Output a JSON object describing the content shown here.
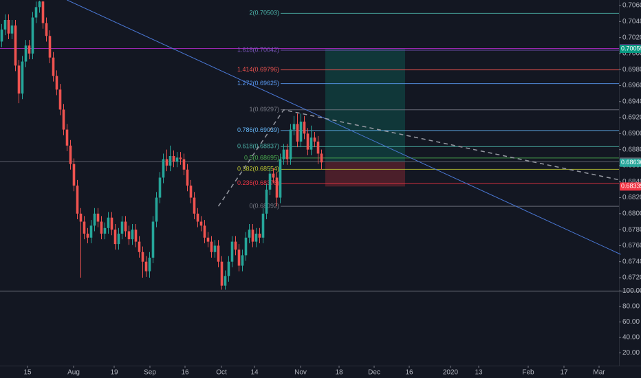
{
  "chart_data": [
    {
      "type": "candlestick",
      "up_color": "#26a69a",
      "down_color": "#ef5350",
      "xlim": [
        -0.5,
        179.5
      ],
      "ylim": [
        0.67037,
        0.70669
      ],
      "grid": false,
      "xticks": [
        {
          "value": 7.5,
          "label": "15"
        },
        {
          "value": 20.9,
          "label": "Aug"
        },
        {
          "value": 32.7,
          "label": "19"
        },
        {
          "value": 43.1,
          "label": "Sep"
        },
        {
          "value": 53.3,
          "label": "16"
        },
        {
          "value": 63.9,
          "label": "Oct"
        },
        {
          "value": 73.5,
          "label": "14"
        },
        {
          "value": 86.9,
          "label": "Nov"
        },
        {
          "value": 98.1,
          "label": "18"
        },
        {
          "value": 108.3,
          "label": "Dec"
        },
        {
          "value": 118.5,
          "label": "16"
        },
        {
          "value": 130.5,
          "label": "2020"
        },
        {
          "value": 138.7,
          "label": "13"
        },
        {
          "value": 153.1,
          "label": "Feb"
        },
        {
          "value": 163.5,
          "label": "17"
        },
        {
          "value": 173.7,
          "label": "Mar"
        }
      ],
      "yticks": [
        {
          "value": 0.706,
          "label": "0.70600"
        },
        {
          "value": 0.704,
          "label": "0.70400"
        },
        {
          "value": 0.702,
          "label": "0.70200"
        },
        {
          "value": 0.7,
          "label": "0.70000"
        },
        {
          "value": 0.698,
          "label": "0.69800"
        },
        {
          "value": 0.696,
          "label": "0.69600"
        },
        {
          "value": 0.694,
          "label": "0.69400"
        },
        {
          "value": 0.692,
          "label": "0.69200"
        },
        {
          "value": 0.69,
          "label": "0.69000"
        },
        {
          "value": 0.688,
          "label": "0.68800"
        },
        {
          "value": 0.686,
          "label": "0.68600"
        },
        {
          "value": 0.684,
          "label": "0.68400"
        },
        {
          "value": 0.682,
          "label": "0.68200"
        },
        {
          "value": 0.68,
          "label": "0.68000"
        },
        {
          "value": 0.678,
          "label": "0.67800"
        },
        {
          "value": 0.676,
          "label": "0.67600"
        },
        {
          "value": 0.674,
          "label": "0.67400"
        },
        {
          "value": 0.672,
          "label": "0.67200"
        }
      ],
      "x": [
        0,
        1,
        2,
        3,
        4,
        5,
        6,
        7,
        8,
        9,
        10,
        11,
        12,
        13,
        14,
        15,
        16,
        17,
        18,
        19,
        20,
        21,
        22,
        23,
        24,
        25,
        26,
        27,
        28,
        29,
        30,
        31,
        32,
        33,
        34,
        35,
        36,
        37,
        38,
        39,
        40,
        41,
        42,
        43,
        44,
        45,
        46,
        47,
        48,
        49,
        50,
        51,
        52,
        53,
        54,
        55,
        56,
        57,
        58,
        59,
        60,
        61,
        62,
        63,
        64,
        65,
        66,
        67,
        68,
        69,
        70,
        71,
        72,
        73,
        74,
        75,
        76,
        77,
        78,
        79,
        80,
        81,
        82,
        83,
        84,
        85,
        86,
        87,
        88,
        89,
        90,
        91,
        92,
        93
      ],
      "open": [
        0.7015,
        0.703,
        0.7042,
        0.7025,
        0.7035,
        0.6985,
        0.695,
        0.699,
        0.701,
        0.7,
        0.7045,
        0.7058,
        0.7065,
        0.7038,
        0.7022,
        0.6995,
        0.6972,
        0.6955,
        0.693,
        0.6905,
        0.6885,
        0.6862,
        0.6835,
        0.68,
        0.679,
        0.6775,
        0.677,
        0.6785,
        0.68,
        0.679,
        0.6775,
        0.6782,
        0.6795,
        0.678,
        0.6762,
        0.6775,
        0.679,
        0.6778,
        0.6768,
        0.678,
        0.6765,
        0.6752,
        0.674,
        0.6728,
        0.6745,
        0.679,
        0.682,
        0.6845,
        0.6868,
        0.686,
        0.6872,
        0.6865,
        0.687,
        0.6868,
        0.6855,
        0.6835,
        0.682,
        0.68,
        0.679,
        0.6785,
        0.677,
        0.6765,
        0.6752,
        0.676,
        0.674,
        0.671,
        0.6722,
        0.674,
        0.6765,
        0.6755,
        0.6735,
        0.6748,
        0.677,
        0.678,
        0.6765,
        0.6775,
        0.677,
        0.68,
        0.683,
        0.685,
        0.6845,
        0.682,
        0.6868,
        0.688,
        0.6868,
        0.6905,
        0.6912,
        0.689,
        0.6915,
        0.69,
        0.688,
        0.6895,
        0.689,
        0.6875
      ],
      "high": [
        0.7037,
        0.7049,
        0.7049,
        0.7042,
        0.7042,
        0.6992,
        0.6997,
        0.7017,
        0.7017,
        0.7052,
        0.7065,
        0.7066,
        0.7066,
        0.7045,
        0.7029,
        0.7002,
        0.6979,
        0.6962,
        0.6937,
        0.6912,
        0.6892,
        0.6869,
        0.6842,
        0.6807,
        0.6797,
        0.6782,
        0.6792,
        0.6807,
        0.6807,
        0.6797,
        0.6789,
        0.6802,
        0.6802,
        0.6787,
        0.6782,
        0.6797,
        0.6797,
        0.6785,
        0.6787,
        0.6787,
        0.6772,
        0.6759,
        0.6747,
        0.6752,
        0.6797,
        0.6827,
        0.6852,
        0.6875,
        0.688,
        0.6885,
        0.6879,
        0.6877,
        0.6877,
        0.6875,
        0.6862,
        0.6842,
        0.6827,
        0.6807,
        0.6797,
        0.6792,
        0.6777,
        0.6772,
        0.6767,
        0.6767,
        0.6747,
        0.6729,
        0.6747,
        0.6772,
        0.6772,
        0.6762,
        0.6755,
        0.6777,
        0.6787,
        0.6787,
        0.6782,
        0.6782,
        0.6807,
        0.6837,
        0.6857,
        0.6857,
        0.6852,
        0.6875,
        0.6887,
        0.6887,
        0.6912,
        0.6922,
        0.6925,
        0.6925,
        0.6922,
        0.6907,
        0.691,
        0.6902,
        0.6897,
        0.688
      ],
      "low": [
        0.7008,
        0.7023,
        0.7018,
        0.7018,
        0.6978,
        0.6938,
        0.6943,
        0.6983,
        0.6993,
        0.6993,
        0.7038,
        0.7051,
        0.7031,
        0.7015,
        0.6988,
        0.6965,
        0.6948,
        0.6923,
        0.6898,
        0.6878,
        0.6855,
        0.6828,
        0.6793,
        0.672,
        0.6768,
        0.6763,
        0.6763,
        0.6778,
        0.6783,
        0.6768,
        0.6768,
        0.6775,
        0.6773,
        0.6755,
        0.6755,
        0.6768,
        0.6771,
        0.6761,
        0.6761,
        0.6758,
        0.6745,
        0.672,
        0.6721,
        0.672,
        0.6738,
        0.6783,
        0.6813,
        0.6838,
        0.6853,
        0.6853,
        0.6858,
        0.6858,
        0.6861,
        0.6848,
        0.6828,
        0.6813,
        0.6793,
        0.6783,
        0.6778,
        0.6763,
        0.6758,
        0.6745,
        0.6745,
        0.6733,
        0.6705,
        0.6705,
        0.6715,
        0.6733,
        0.6748,
        0.6728,
        0.6728,
        0.6741,
        0.6763,
        0.6758,
        0.6758,
        0.6763,
        0.6763,
        0.6793,
        0.6823,
        0.6838,
        0.6809,
        0.6813,
        0.6861,
        0.6861,
        0.6861,
        0.6898,
        0.6883,
        0.6883,
        0.6893,
        0.6873,
        0.6873,
        0.6883,
        0.6862,
        0.6855
      ],
      "close": [
        0.703,
        0.7042,
        0.7025,
        0.7035,
        0.6985,
        0.695,
        0.699,
        0.701,
        0.7,
        0.7045,
        0.7058,
        0.7065,
        0.7038,
        0.7022,
        0.6995,
        0.6972,
        0.6955,
        0.693,
        0.6905,
        0.6885,
        0.6862,
        0.6835,
        0.68,
        0.679,
        0.6775,
        0.677,
        0.6785,
        0.68,
        0.679,
        0.6775,
        0.6782,
        0.6795,
        0.678,
        0.6762,
        0.6775,
        0.679,
        0.6778,
        0.6768,
        0.678,
        0.6765,
        0.6752,
        0.674,
        0.6728,
        0.6745,
        0.679,
        0.682,
        0.6845,
        0.6868,
        0.686,
        0.6872,
        0.6865,
        0.687,
        0.6868,
        0.6855,
        0.6835,
        0.682,
        0.68,
        0.679,
        0.6785,
        0.677,
        0.6765,
        0.6752,
        0.676,
        0.674,
        0.671,
        0.6722,
        0.674,
        0.6765,
        0.6755,
        0.6735,
        0.6748,
        0.677,
        0.678,
        0.6765,
        0.6775,
        0.677,
        0.68,
        0.683,
        0.685,
        0.6845,
        0.682,
        0.6868,
        0.688,
        0.6868,
        0.6905,
        0.6912,
        0.689,
        0.6915,
        0.69,
        0.688,
        0.6895,
        0.689,
        0.6875,
        0.6864
      ],
      "fib_levels": [
        {
          "label": "2(0.70503)",
          "price": 0.70503,
          "color": "#4db6ac"
        },
        {
          "label": "1.618(0.70042)",
          "price": 0.70042,
          "color": "#7e57c2"
        },
        {
          "label": "1.414(0.69796)",
          "price": 0.69796,
          "color": "#ef5350"
        },
        {
          "label": "1.272(0.69625)",
          "price": 0.69625,
          "color": "#5b9cf6"
        },
        {
          "label": "1(0.69297)",
          "price": 0.69297,
          "color": "#787b86"
        },
        {
          "label": "0.786(0.69039)",
          "price": 0.69039,
          "color": "#64b5f6"
        },
        {
          "label": "0.618(0.68837)",
          "price": 0.68837,
          "color": "#4db6ac"
        },
        {
          "label": "0.5(0.68695)",
          "price": 0.68695,
          "color": "#4caf50"
        },
        {
          "label": "0.382(0.68554)",
          "price": 0.68554,
          "color": "#c0ca33"
        },
        {
          "label": "0.236(0.68378)",
          "price": 0.68378,
          "color": "#f23645"
        },
        {
          "label": "0(0.68092)",
          "price": 0.68092,
          "color": "#787b86"
        }
      ],
      "horizontal_lines": [
        {
          "price": 0.70064,
          "color": "#9c27b0"
        },
        {
          "price": 0.6865,
          "color": "#5d606b"
        }
      ],
      "price_badges": [
        {
          "value": 0.70064,
          "label": "0.70064",
          "color": "#9c27b0"
        },
        {
          "value": 0.70059,
          "label": "0.70059",
          "color": "#089981"
        },
        {
          "value": 0.6865,
          "label": "0.68650",
          "color": "#5d606b"
        },
        {
          "value": 0.68636,
          "label": "0.68636",
          "color": "#26a69a"
        },
        {
          "value": 0.68339,
          "label": "0.68339",
          "color": "#f23645"
        }
      ],
      "trendline": {
        "x": [
          19,
          180
        ],
        "y": [
          0.70669,
          0.67491
        ],
        "color": "#4a78d6"
      },
      "dashed_path": {
        "x": [
          63,
          82,
          180
        ],
        "y": [
          0.68092,
          0.69297,
          0.68418
        ],
        "color": "#9598a1"
      },
      "position": {
        "x": [
          94.1,
          117.3
        ],
        "entry": 0.6865,
        "target": 0.70059,
        "stop": 0.68339
      }
    },
    {
      "type": "indicator-pane",
      "ylim": [
        3.6,
        100.27
      ],
      "yticks": [
        {
          "value": 100,
          "label": "100.00"
        },
        {
          "value": 80,
          "label": "80.00"
        },
        {
          "value": 60,
          "label": "60.00"
        },
        {
          "value": 40,
          "label": "40.00"
        },
        {
          "value": 20,
          "label": "20.00"
        }
      ]
    }
  ]
}
